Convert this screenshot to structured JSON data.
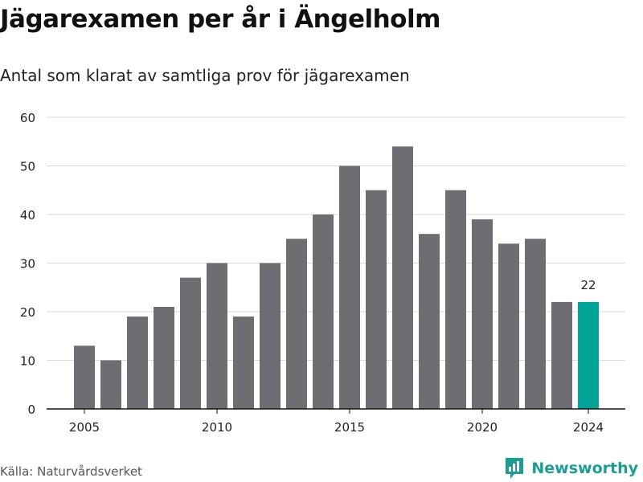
{
  "header": {
    "title": "Jägarexamen per år i Ängelholm",
    "subtitle": "Antal som klarat av samtliga prov för jägarexamen"
  },
  "footer": {
    "source": "Källa: Naturvårdsverket",
    "brand": "Newsworthy"
  },
  "colors": {
    "bar": "#6e6d72",
    "highlight": "#00a398",
    "grid": "#d9d9d9",
    "axis": "#111111",
    "brand": "#1a9e96"
  },
  "chart_data": {
    "type": "bar",
    "title": "Jägarexamen per år i Ängelholm",
    "subtitle": "Antal som klarat av samtliga prov för jägarexamen",
    "x": [
      2005,
      2006,
      2007,
      2008,
      2009,
      2010,
      2011,
      2012,
      2013,
      2014,
      2015,
      2016,
      2017,
      2018,
      2019,
      2020,
      2021,
      2022,
      2023,
      2024
    ],
    "values": [
      13,
      10,
      19,
      21,
      27,
      30,
      19,
      30,
      35,
      40,
      50,
      45,
      54,
      36,
      45,
      39,
      34,
      35,
      22,
      22
    ],
    "highlight_index": 19,
    "data_labels": [
      {
        "index": 19,
        "text": "22"
      }
    ],
    "x_ticks": [
      2005,
      2010,
      2015,
      2020,
      2024
    ],
    "y_ticks": [
      0,
      10,
      20,
      30,
      40,
      50,
      60
    ],
    "ylim": [
      0,
      60
    ],
    "xlabel": "",
    "ylabel": "",
    "grid": true
  }
}
